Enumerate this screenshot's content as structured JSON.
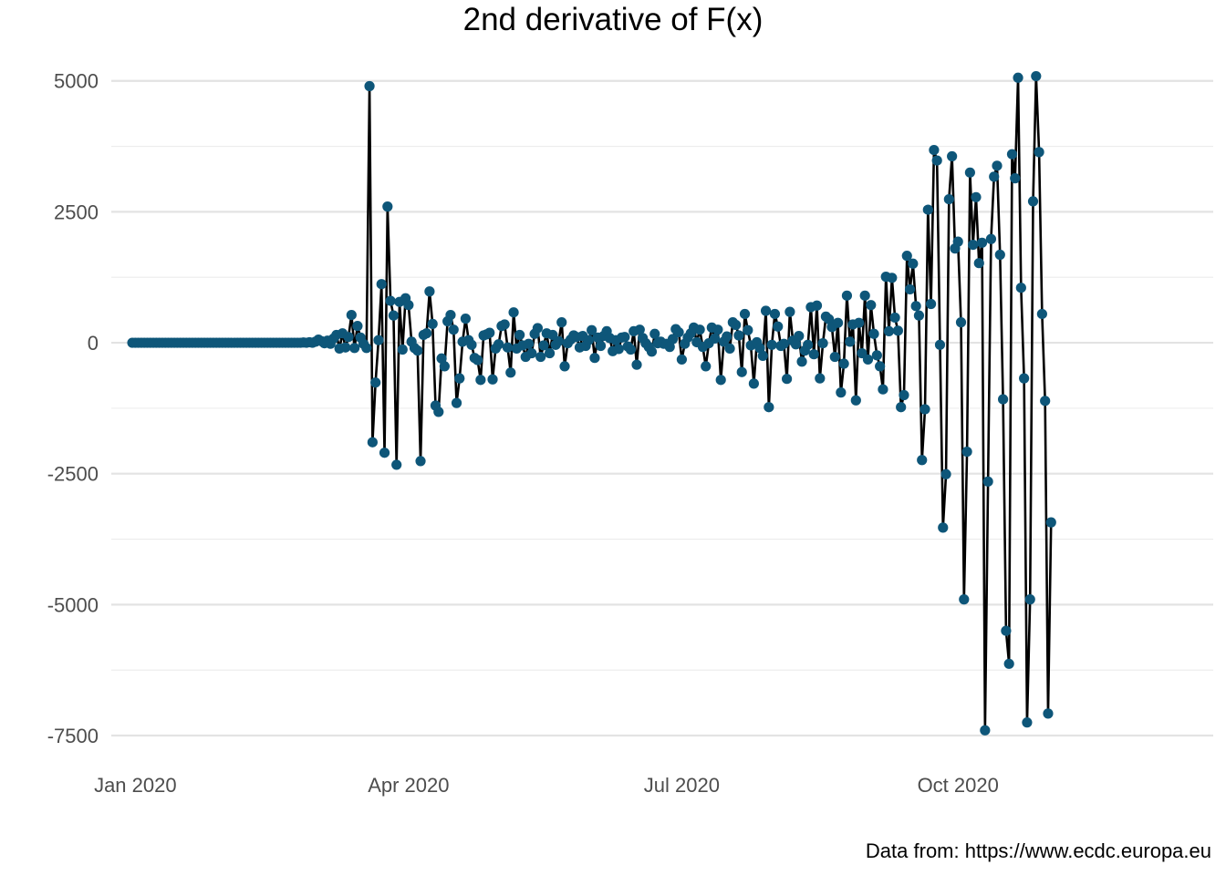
{
  "chart_data": {
    "type": "line",
    "title": "2nd derivative of F(x)",
    "xlabel": "",
    "ylabel": "",
    "caption": "Data from: https://www.ecdc.europa.eu",
    "x_start_date": "2019-12-31",
    "x_range": [
      "2019-12-24",
      "2020-12-25"
    ],
    "ylim": [
      -7900,
      5500
    ],
    "y_ticks": [
      -7500,
      -5000,
      -2500,
      0,
      2500,
      5000
    ],
    "y_tick_labels": [
      "-7500",
      "-5000",
      "-2500",
      "0",
      "2500",
      "5000"
    ],
    "x_ticks": [
      "2020-01-01",
      "2020-04-01",
      "2020-07-01",
      "2020-10-01"
    ],
    "x_tick_labels": [
      "Jan 2020",
      "Apr 2020",
      "Jul 2020",
      "Oct 2020"
    ],
    "grid": true,
    "colors": {
      "line": "#000000",
      "points": "#0e5679"
    },
    "series": [
      {
        "values": [
          0,
          0,
          0,
          0,
          0,
          0,
          0,
          0,
          0,
          0,
          0,
          0,
          0,
          0,
          0,
          0,
          0,
          0,
          0,
          0,
          0,
          0,
          0,
          0,
          0,
          0,
          0,
          0,
          0,
          0,
          0,
          0,
          0,
          0,
          0,
          0,
          0,
          0,
          0,
          0,
          0,
          0,
          0,
          0,
          0,
          0,
          0,
          0,
          0,
          0,
          0,
          0,
          0,
          0,
          0,
          0,
          0,
          5,
          0,
          10,
          0,
          20,
          60,
          30,
          -10,
          40,
          -20,
          80,
          150,
          -110,
          180,
          -90,
          110,
          530,
          -100,
          320,
          100,
          -20,
          -100,
          4900,
          -1900,
          -760,
          50,
          1120,
          -2100,
          2600,
          800,
          520,
          -2330,
          780,
          -130,
          850,
          720,
          20,
          -100,
          -150,
          -2260,
          150,
          180,
          980,
          360,
          -1200,
          -1320,
          -300,
          -450,
          410,
          530,
          250,
          -1150,
          -680,
          20,
          460,
          50,
          -40,
          -290,
          -330,
          -710,
          140,
          160,
          190,
          -700,
          -110,
          -30,
          320,
          350,
          -90,
          -570,
          580,
          -110,
          150,
          -50,
          -270,
          -20,
          -200,
          170,
          280,
          -270,
          -50,
          180,
          -200,
          150,
          -40,
          30,
          390,
          -450,
          -10,
          60,
          140,
          110,
          -90,
          130,
          -60,
          50,
          240,
          -290,
          100,
          -60,
          130,
          220,
          90,
          -160,
          50,
          -120,
          100,
          110,
          -70,
          -130,
          220,
          -420,
          250,
          90,
          -10,
          -80,
          -170,
          170,
          -10,
          20,
          -20,
          -20,
          -80,
          70,
          260,
          200,
          -320,
          -20,
          100,
          180,
          290,
          10,
          250,
          -80,
          -450,
          -10,
          290,
          80,
          250,
          -710,
          20,
          120,
          -110,
          390,
          340,
          140,
          -560,
          550,
          240,
          -50,
          -780,
          10,
          -100,
          -250,
          610,
          -1230,
          -40,
          550,
          310,
          -60,
          -20,
          -690,
          590,
          40,
          -30,
          130,
          -360,
          -150,
          -40,
          680,
          -220,
          710,
          -680,
          -10,
          500,
          450,
          300,
          -270,
          380,
          -950,
          -400,
          900,
          20,
          350,
          -1100,
          380,
          -200,
          900,
          -320,
          720,
          170,
          -240,
          -450,
          -890,
          1260,
          220,
          1240,
          480,
          230,
          -1230,
          -1000,
          1660,
          1020,
          1510,
          700,
          520,
          -2240,
          -1270,
          2540,
          740,
          3680,
          3480,
          -40,
          -3530,
          -2510,
          2740,
          3560,
          1800,
          1930,
          390,
          -4900,
          -2080,
          3250,
          1870,
          2780,
          1520,
          1910,
          -7400,
          -2650,
          1980,
          3170,
          3380,
          1680,
          -1080,
          -5500,
          -6130,
          3600,
          3140,
          5060,
          1050,
          -680,
          -7250,
          -4900,
          2700,
          5090,
          3640,
          550,
          -1110,
          -7080,
          -3430
        ]
      }
    ]
  }
}
